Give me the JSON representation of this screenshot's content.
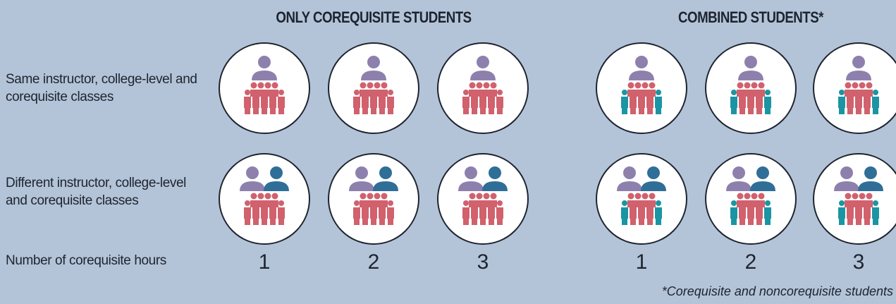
{
  "groups": [
    {
      "title": "ONLY COREQUISITE STUDENTS",
      "hours": [
        1,
        2,
        3
      ]
    },
    {
      "title": "COMBINED STUDENTS*",
      "hours": [
        1,
        2,
        3
      ]
    }
  ],
  "rows": [
    {
      "label": "Same instructor, college-level and corequisite classes"
    },
    {
      "label": "Different instructor, college-level and corequisite classes"
    }
  ],
  "hours_label": "Number of corequisite hours",
  "footnote": "*Corequisite and noncorequisite students"
}
